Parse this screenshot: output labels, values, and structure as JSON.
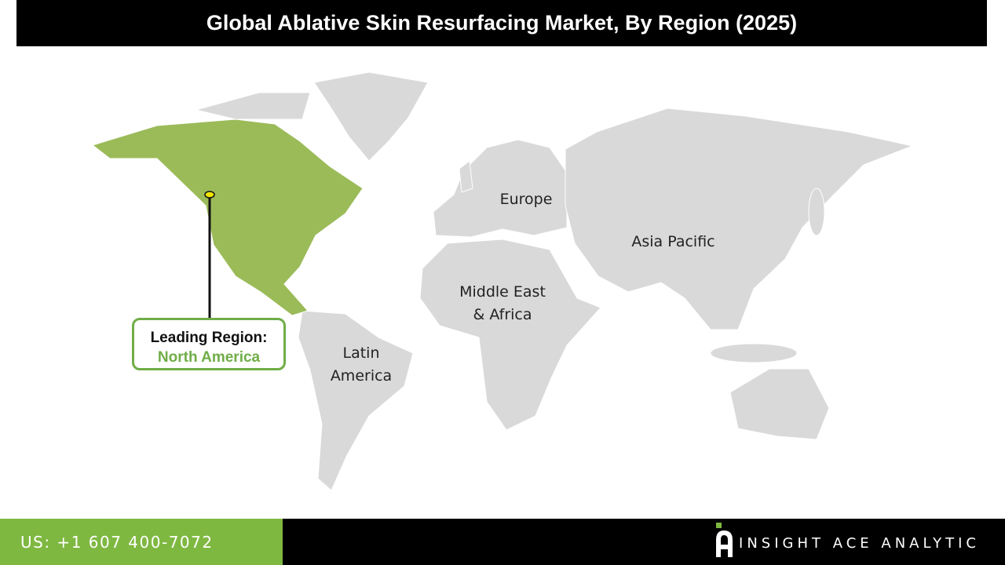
{
  "title": "Global Ablative Skin Resurfacing Market, By Region (2025)",
  "regions": [
    {
      "name": "North America",
      "highlighted": true
    },
    {
      "name": "Europe",
      "highlighted": false
    },
    {
      "name": "Asia Pacific",
      "highlighted": false
    },
    {
      "name": "Middle East & Africa",
      "highlighted": false
    },
    {
      "name": "Latin America",
      "highlighted": false
    }
  ],
  "labels": {
    "europe": "Europe",
    "asia_pacific": "Asia Pacific",
    "mea_line1": "Middle East",
    "mea_line2": "& Africa",
    "latam_line1": "Latin",
    "latam_line2": "America"
  },
  "callout": {
    "heading": "Leading Region:",
    "region": "North America"
  },
  "footer": {
    "phone": "US: +1 607 400-7072",
    "brand": "INSIGHT ACE ANALYTIC"
  },
  "colors": {
    "highlight": "#9bbb59",
    "land": "#d9d9d9",
    "accent": "#70ad47",
    "footer_green": "#7fb841",
    "marker": "#f2e600"
  }
}
